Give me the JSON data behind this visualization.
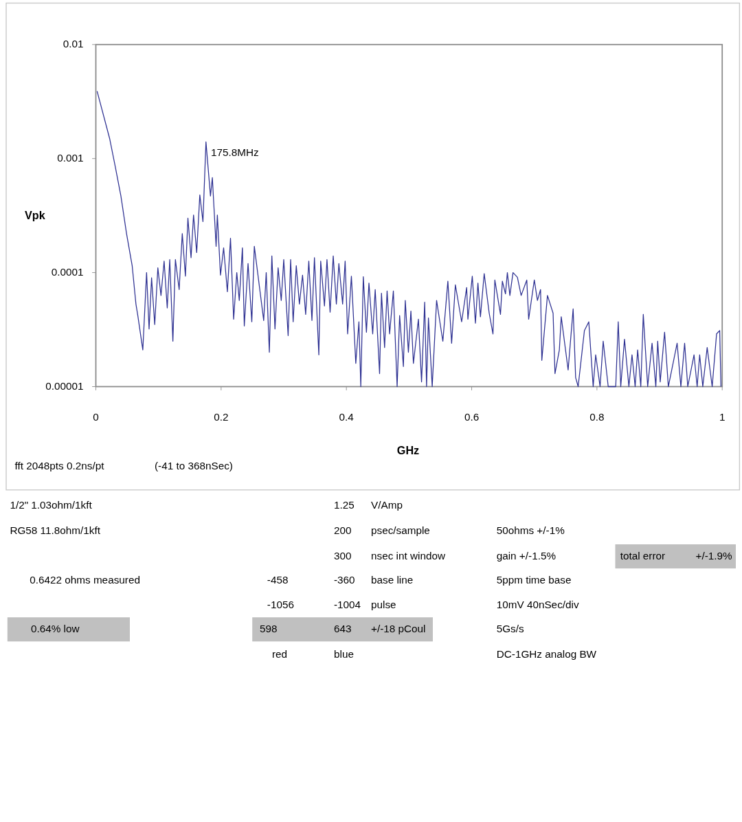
{
  "chart_data": {
    "type": "line",
    "xlabel": "GHz",
    "ylabel": "Vpk",
    "log": true,
    "xlim": [
      0,
      1
    ],
    "xticks": [
      0,
      0.2,
      0.4,
      0.6,
      0.8,
      1
    ],
    "ylim": [
      1e-05,
      0.01
    ],
    "yticks": [
      {
        "value": 1e-05,
        "label": "0.00001"
      },
      0.0001,
      0.001,
      0.01
    ],
    "x": [
      0.002,
      0.022,
      0.031,
      0.04,
      0.049,
      0.058,
      0.064,
      0.067,
      0.075,
      0.081,
      0.085,
      0.089,
      0.094,
      0.099,
      0.104,
      0.109,
      0.114,
      0.118,
      0.123,
      0.127,
      0.133,
      0.138,
      0.143,
      0.147,
      0.152,
      0.156,
      0.161,
      0.166,
      0.171,
      0.1758,
      0.183,
      0.186,
      0.192,
      0.194,
      0.199,
      0.204,
      0.21,
      0.215,
      0.22,
      0.225,
      0.229,
      0.234,
      0.237,
      0.243,
      0.249,
      0.253,
      0.268,
      0.272,
      0.277,
      0.281,
      0.286,
      0.291,
      0.296,
      0.3,
      0.307,
      0.311,
      0.315,
      0.32,
      0.325,
      0.33,
      0.335,
      0.34,
      0.345,
      0.349,
      0.356,
      0.359,
      0.365,
      0.369,
      0.374,
      0.379,
      0.384,
      0.388,
      0.394,
      0.398,
      0.402,
      0.408,
      0.415,
      0.42,
      0.423,
      0.427,
      0.432,
      0.436,
      0.442,
      0.446,
      0.453,
      0.456,
      0.461,
      0.465,
      0.469,
      0.475,
      0.481,
      0.485,
      0.491,
      0.494,
      0.499,
      0.503,
      0.507,
      0.515,
      0.52,
      0.525,
      0.528,
      0.531,
      0.537,
      0.544,
      0.554,
      0.562,
      0.568,
      0.574,
      0.584,
      0.592,
      0.594,
      0.601,
      0.606,
      0.61,
      0.614,
      0.62,
      0.628,
      0.634,
      0.637,
      0.646,
      0.649,
      0.654,
      0.657,
      0.661,
      0.666,
      0.673,
      0.679,
      0.688,
      0.691,
      0.7,
      0.705,
      0.71,
      0.712,
      0.721,
      0.73,
      0.733,
      0.74,
      0.743,
      0.754,
      0.762,
      0.766,
      0.77,
      0.78,
      0.787,
      0.794,
      0.798,
      0.805,
      0.81,
      0.818,
      0.83,
      0.834,
      0.838,
      0.844,
      0.851,
      0.856,
      0.861,
      0.865,
      0.87,
      0.874,
      0.881,
      0.888,
      0.894,
      0.897,
      0.901,
      0.908,
      0.914,
      0.928,
      0.934,
      0.94,
      0.945,
      0.955,
      0.96,
      0.964,
      0.969,
      0.976,
      0.984,
      0.991,
      0.996,
      0.998
    ],
    "series": [
      {
        "color": "#2e3192",
        "values": [
          0.0039,
          0.0015,
          0.00085,
          0.00047,
          0.00022,
          0.000115,
          5.3e-05,
          4.2e-05,
          2.1e-05,
          0.0001,
          3.2e-05,
          9e-05,
          3.5e-05,
          0.00011,
          6.3e-05,
          0.000126,
          4.9e-05,
          0.00013,
          2.5e-05,
          0.00013,
          7.1e-05,
          0.00022,
          9.3e-05,
          0.0003,
          0.000135,
          0.00032,
          0.00015,
          0.00048,
          0.00028,
          0.0014,
          0.00047,
          0.00068,
          0.00017,
          0.00032,
          9.5e-05,
          0.000165,
          6.8e-05,
          0.0002,
          3.9e-05,
          0.0001,
          5.7e-05,
          0.000165,
          3.4e-05,
          0.00012,
          3.7e-05,
          0.00017,
          3.8e-05,
          0.0001,
          2e-05,
          0.00014,
          3.2e-05,
          0.00011,
          5.7e-05,
          0.00013,
          2.8e-05,
          0.00013,
          3.7e-05,
          0.000115,
          5.3e-05,
          9.5e-05,
          4.3e-05,
          0.000126,
          3.8e-05,
          0.000135,
          1.9e-05,
          0.000126,
          5.1e-05,
          0.00013,
          4.5e-05,
          0.00014,
          5.3e-05,
          0.00012,
          5.3e-05,
          0.000126,
          2.9e-05,
          9.3e-05,
          1.6e-05,
          3.7e-05,
          1e-05,
          9.2e-05,
          3e-05,
          8.1e-05,
          2.9e-05,
          7.1e-05,
          1.3e-05,
          6.6e-05,
          2.2e-05,
          6.9e-05,
          2.9e-05,
          6.9e-05,
          1e-05,
          4.2e-05,
          1.5e-05,
          5.7e-05,
          2e-05,
          4.6e-05,
          1.6e-05,
          3.9e-05,
          1.1e-05,
          5.5e-05,
          1e-05,
          4e-05,
          1e-05,
          5.7e-05,
          2.5e-05,
          8.4e-05,
          2.4e-05,
          7.8e-05,
          3.7e-05,
          7.4e-05,
          3.9e-05,
          9.3e-05,
          3.6e-05,
          8.1e-05,
          4.1e-05,
          9.8e-05,
          4.4e-05,
          2.9e-05,
          8.6e-05,
          4.3e-05,
          8.4e-05,
          6.5e-05,
          0.0001,
          6.3e-05,
          0.0001,
          9.1e-05,
          6.3e-05,
          8.6e-05,
          3.9e-05,
          8.6e-05,
          5.7e-05,
          7.1e-05,
          1.7e-05,
          6.3e-05,
          4.4e-05,
          1.3e-05,
          2.1e-05,
          4.1e-05,
          1.4e-05,
          4.8e-05,
          1.2e-05,
          1e-05,
          3.1e-05,
          3.7e-05,
          1e-05,
          1.9e-05,
          1e-05,
          2.5e-05,
          1e-05,
          1e-05,
          3.7e-05,
          1e-05,
          2.6e-05,
          1e-05,
          1.9e-05,
          1e-05,
          2.1e-05,
          1e-05,
          4.3e-05,
          1e-05,
          2.4e-05,
          1e-05,
          2.5e-05,
          1.1e-05,
          3e-05,
          1e-05,
          2.4e-05,
          1e-05,
          2.4e-05,
          1e-05,
          1.9e-05,
          1e-05,
          1.9e-05,
          1e-05,
          2.2e-05,
          1e-05,
          2.9e-05,
          3.1e-05,
          1e-05
        ]
      }
    ],
    "annotations": [
      {
        "text": "175.8MHz",
        "x": 0.1758,
        "y": 0.0014
      },
      "fft 2048pts 0.2ns/pt",
      "(-41 to 368nSec)",
      "1/2\" 1.03ohm/1kft",
      "RG58 11.8ohm/1kft",
      "0.6422 ohms measured",
      "0.64% low",
      "-458",
      "-1056",
      "598",
      "red",
      "1.25",
      "200",
      "300",
      "-360",
      "-1004",
      "643",
      "blue",
      "V/Amp",
      "psec/sample",
      "nsec int window",
      "base line",
      "pulse",
      "+/-18 pCoul",
      "50ohms +/-1%",
      "gain +/-1.5%",
      "5ppm time base",
      "10mV 40nSec/div",
      "5Gs/s",
      "DC-1GHz analog BW",
      "total error",
      "+/-1.9%"
    ]
  }
}
